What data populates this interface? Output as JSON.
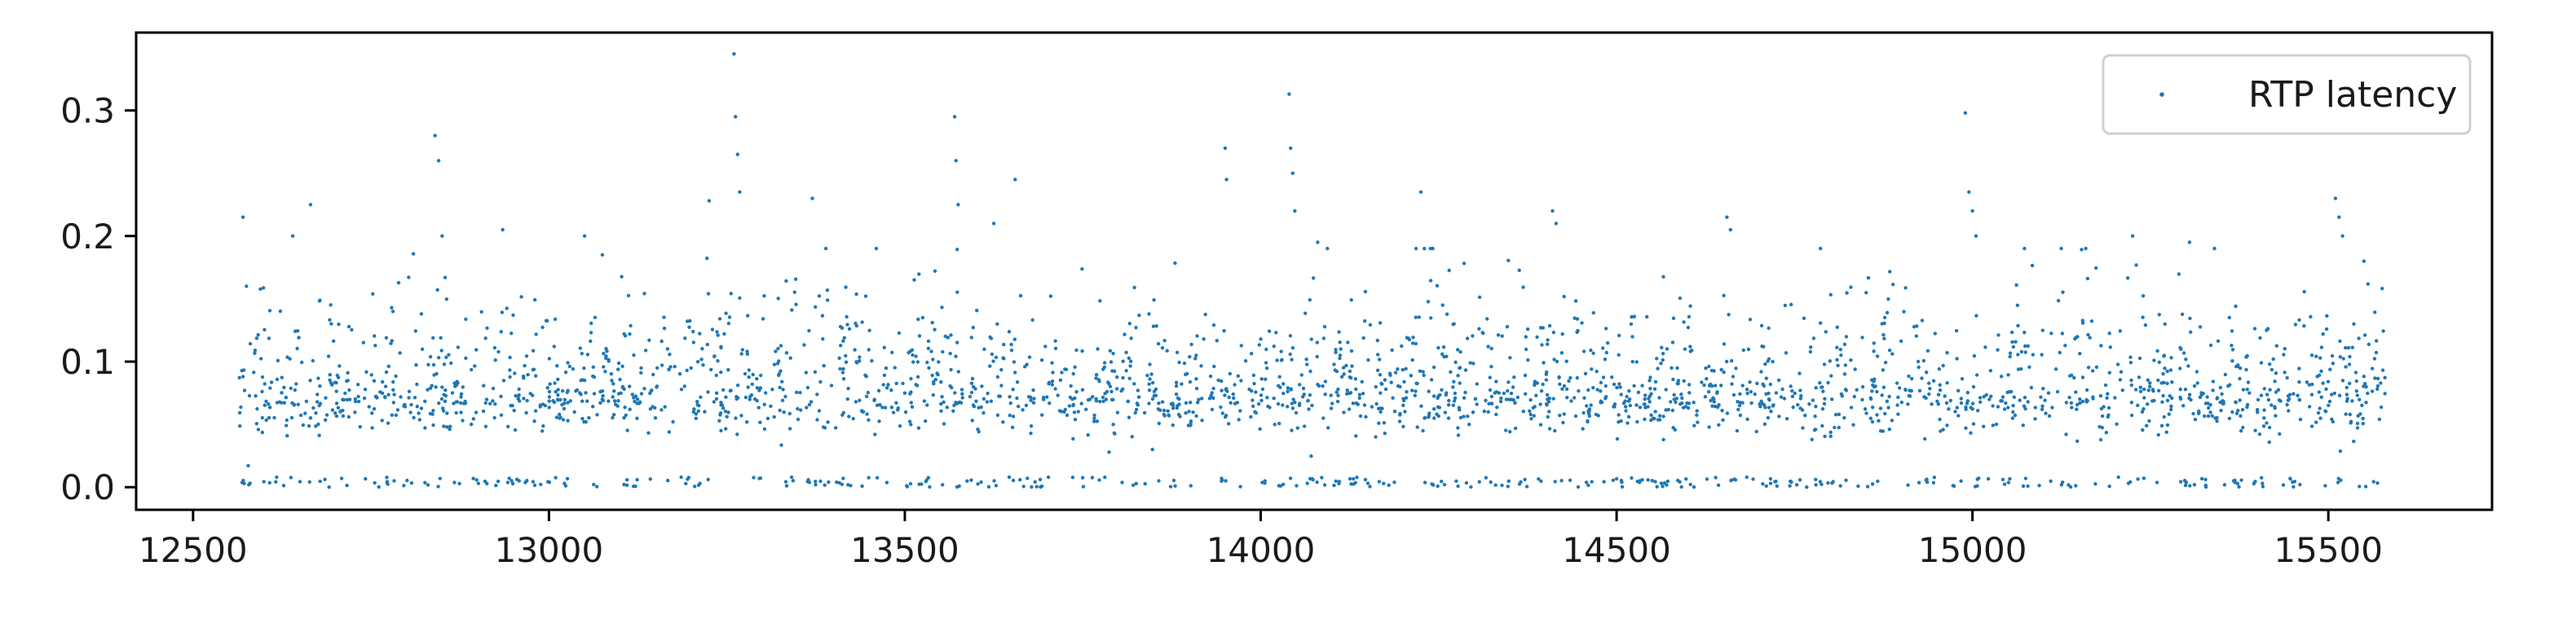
{
  "chart_data": {
    "type": "scatter",
    "title": "",
    "xlabel": "",
    "ylabel": "",
    "xlim": [
      12420,
      15730
    ],
    "ylim": [
      -0.018,
      0.362
    ],
    "x_ticks": [
      12500,
      13000,
      13500,
      14000,
      14500,
      15000,
      15500
    ],
    "y_ticks": [
      0.0,
      0.1,
      0.2,
      0.3
    ],
    "x_tick_labels": [
      "12500",
      "13000",
      "13500",
      "14000",
      "14500",
      "15000",
      "15500"
    ],
    "y_tick_labels": [
      "0.0",
      "0.1",
      "0.2",
      "0.3"
    ],
    "grid": false,
    "legend": {
      "position": "top-right",
      "entries": [
        "RTP latency"
      ]
    },
    "series": [
      {
        "name": "RTP latency",
        "color": "#1f77b4",
        "generator": {
          "x_range": [
            12565,
            15580
          ],
          "point_count": 2800,
          "baseline": 0.065,
          "notable_points": [
            [
              12570,
              0.215
            ],
            [
              12575,
              0.16
            ],
            [
              12640,
              0.2
            ],
            [
              12665,
              0.225
            ],
            [
              12840,
              0.28
            ],
            [
              12845,
              0.26
            ],
            [
              12850,
              0.2
            ],
            [
              12935,
              0.205
            ],
            [
              13050,
              0.2
            ],
            [
              13075,
              0.185
            ],
            [
              13225,
              0.228
            ],
            [
              13260,
              0.345
            ],
            [
              13262,
              0.295
            ],
            [
              13265,
              0.265
            ],
            [
              13268,
              0.235
            ],
            [
              13370,
              0.23
            ],
            [
              13570,
              0.295
            ],
            [
              13572,
              0.26
            ],
            [
              13575,
              0.225
            ],
            [
              13625,
              0.21
            ],
            [
              13655,
              0.245
            ],
            [
              13950,
              0.27
            ],
            [
              13952,
              0.245
            ],
            [
              14040,
              0.313
            ],
            [
              14042,
              0.27
            ],
            [
              14045,
              0.25
            ],
            [
              14048,
              0.22
            ],
            [
              14080,
              0.195
            ],
            [
              14225,
              0.235
            ],
            [
              14230,
              0.19
            ],
            [
              14410,
              0.22
            ],
            [
              14415,
              0.21
            ],
            [
              14655,
              0.215
            ],
            [
              14660,
              0.205
            ],
            [
              14990,
              0.298
            ],
            [
              14995,
              0.235
            ],
            [
              15000,
              0.22
            ],
            [
              15005,
              0.2
            ],
            [
              15225,
              0.2
            ],
            [
              15305,
              0.195
            ],
            [
              15340,
              0.19
            ],
            [
              15510,
              0.23
            ],
            [
              15515,
              0.215
            ],
            [
              15520,
              0.2
            ],
            [
              15550,
              0.18
            ]
          ]
        }
      }
    ]
  }
}
